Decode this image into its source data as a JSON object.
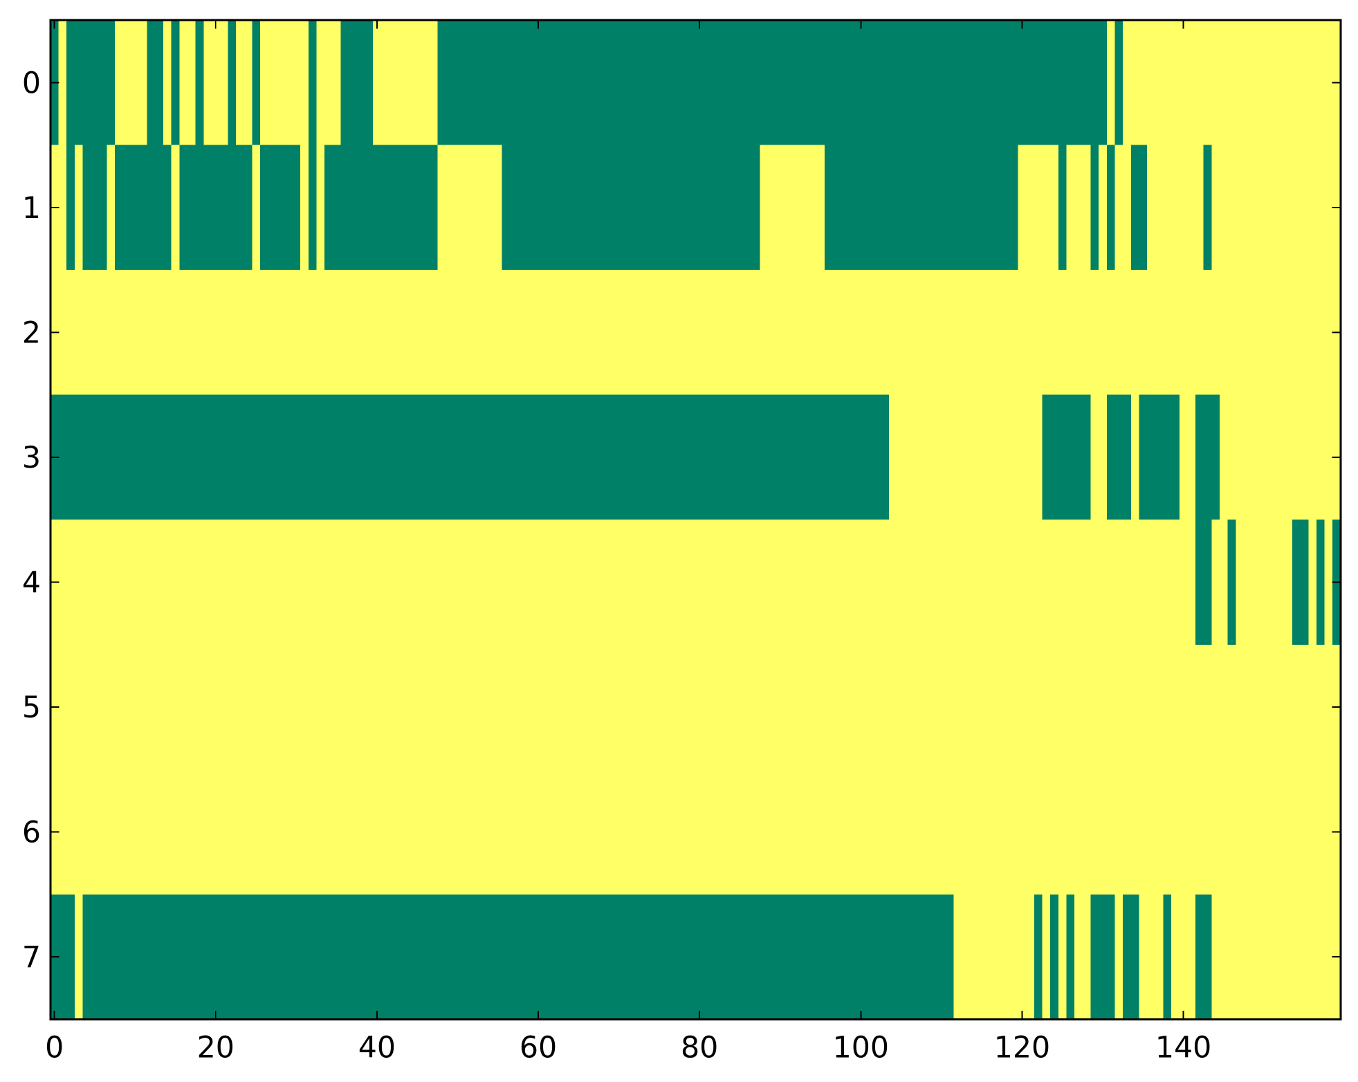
{
  "chart_data": {
    "type": "heatmap",
    "colors": [
      "#008066",
      "#ffff66"
    ],
    "xlim": [
      -0.5,
      159.5
    ],
    "ylim": [
      7.5,
      -0.5
    ],
    "xticks": [
      0,
      20,
      40,
      60,
      80,
      100,
      120,
      140
    ],
    "yticks": [
      0,
      1,
      2,
      3,
      4,
      5,
      6,
      7
    ],
    "values": [
      [
        0,
        1,
        0,
        0,
        0,
        0,
        0,
        0,
        1,
        1,
        1,
        1,
        0,
        0,
        1,
        0,
        1,
        1,
        0,
        1,
        1,
        1,
        0,
        1,
        1,
        0,
        1,
        1,
        1,
        1,
        1,
        1,
        0,
        1,
        1,
        1,
        0,
        0,
        0,
        0,
        1,
        1,
        1,
        1,
        1,
        1,
        1,
        1,
        0,
        0,
        0,
        0,
        0,
        0,
        0,
        0,
        0,
        0,
        0,
        0,
        0,
        0,
        0,
        0,
        0,
        0,
        0,
        0,
        0,
        0,
        0,
        0,
        0,
        0,
        0,
        0,
        0,
        0,
        0,
        0,
        0,
        0,
        0,
        0,
        0,
        0,
        0,
        0,
        0,
        0,
        0,
        0,
        0,
        0,
        0,
        0,
        0,
        0,
        0,
        0,
        0,
        0,
        0,
        0,
        0,
        0,
        0,
        0,
        0,
        0,
        0,
        0,
        0,
        0,
        0,
        0,
        0,
        0,
        0,
        0,
        0,
        0,
        0,
        0,
        0,
        0,
        0,
        0,
        0,
        0,
        0,
        1,
        0,
        1,
        1,
        1,
        1,
        1,
        1,
        1,
        1,
        1,
        1,
        1,
        1,
        1,
        1,
        1,
        1,
        1,
        1,
        1,
        1,
        1,
        1,
        1,
        1,
        1,
        1,
        1
      ],
      [
        1,
        1,
        0,
        1,
        0,
        0,
        0,
        1,
        0,
        0,
        0,
        0,
        0,
        0,
        0,
        1,
        0,
        0,
        0,
        0,
        0,
        0,
        0,
        0,
        0,
        1,
        0,
        0,
        0,
        0,
        0,
        1,
        0,
        1,
        0,
        0,
        0,
        0,
        0,
        0,
        0,
        0,
        0,
        0,
        0,
        0,
        0,
        0,
        1,
        1,
        1,
        1,
        1,
        1,
        1,
        1,
        0,
        0,
        0,
        0,
        0,
        0,
        0,
        0,
        0,
        0,
        0,
        0,
        0,
        0,
        0,
        0,
        0,
        0,
        0,
        0,
        0,
        0,
        0,
        0,
        0,
        0,
        0,
        0,
        0,
        0,
        0,
        0,
        1,
        1,
        1,
        1,
        1,
        1,
        1,
        1,
        0,
        0,
        0,
        0,
        0,
        0,
        0,
        0,
        0,
        0,
        0,
        0,
        0,
        0,
        0,
        0,
        0,
        0,
        0,
        0,
        0,
        0,
        0,
        0,
        1,
        1,
        1,
        1,
        1,
        0,
        1,
        1,
        1,
        0,
        1,
        0,
        1,
        1,
        0,
        0,
        1,
        1,
        1,
        1,
        1,
        1,
        1,
        0,
        1,
        1,
        1,
        1,
        1,
        1,
        1,
        1,
        1,
        1,
        1,
        1,
        1,
        1,
        1,
        1
      ],
      [
        1,
        1,
        1,
        1,
        1,
        1,
        1,
        1,
        1,
        1,
        1,
        1,
        1,
        1,
        1,
        1,
        1,
        1,
        1,
        1,
        1,
        1,
        1,
        1,
        1,
        1,
        1,
        1,
        1,
        1,
        1,
        1,
        1,
        1,
        1,
        1,
        1,
        1,
        1,
        1,
        1,
        1,
        1,
        1,
        1,
        1,
        1,
        1,
        1,
        1,
        1,
        1,
        1,
        1,
        1,
        1,
        1,
        1,
        1,
        1,
        1,
        1,
        1,
        1,
        1,
        1,
        1,
        1,
        1,
        1,
        1,
        1,
        1,
        1,
        1,
        1,
        1,
        1,
        1,
        1,
        1,
        1,
        1,
        1,
        1,
        1,
        1,
        1,
        1,
        1,
        1,
        1,
        1,
        1,
        1,
        1,
        1,
        1,
        1,
        1,
        1,
        1,
        1,
        1,
        1,
        1,
        1,
        1,
        1,
        1,
        1,
        1,
        1,
        1,
        1,
        1,
        1,
        1,
        1,
        1,
        1,
        1,
        1,
        1,
        1,
        1,
        1,
        1,
        1,
        1,
        1,
        1,
        1,
        1,
        1,
        1,
        1,
        1,
        1,
        1,
        1,
        1,
        1,
        1,
        1,
        1,
        1,
        1,
        1,
        1,
        1,
        1,
        1,
        1,
        1,
        1,
        1,
        1,
        1,
        1
      ],
      [
        0,
        0,
        0,
        0,
        0,
        0,
        0,
        0,
        0,
        0,
        0,
        0,
        0,
        0,
        0,
        0,
        0,
        0,
        0,
        0,
        0,
        0,
        0,
        0,
        0,
        0,
        0,
        0,
        0,
        0,
        0,
        0,
        0,
        0,
        0,
        0,
        0,
        0,
        0,
        0,
        0,
        0,
        0,
        0,
        0,
        0,
        0,
        0,
        0,
        0,
        0,
        0,
        0,
        0,
        0,
        0,
        0,
        0,
        0,
        0,
        0,
        0,
        0,
        0,
        0,
        0,
        0,
        0,
        0,
        0,
        0,
        0,
        0,
        0,
        0,
        0,
        0,
        0,
        0,
        0,
        0,
        0,
        0,
        0,
        0,
        0,
        0,
        0,
        0,
        0,
        0,
        0,
        0,
        0,
        0,
        0,
        0,
        0,
        0,
        0,
        0,
        0,
        0,
        0,
        1,
        1,
        1,
        1,
        1,
        1,
        1,
        1,
        1,
        1,
        1,
        1,
        1,
        1,
        1,
        1,
        1,
        1,
        1,
        0,
        0,
        0,
        0,
        0,
        0,
        1,
        1,
        0,
        0,
        0,
        1,
        0,
        0,
        0,
        0,
        0,
        1,
        1,
        0,
        0,
        0,
        1,
        1,
        1,
        1,
        1,
        1,
        1,
        1,
        1,
        1,
        1,
        1,
        1,
        1,
        1
      ],
      [
        1,
        1,
        1,
        1,
        1,
        1,
        1,
        1,
        1,
        1,
        1,
        1,
        1,
        1,
        1,
        1,
        1,
        1,
        1,
        1,
        1,
        1,
        1,
        1,
        1,
        1,
        1,
        1,
        1,
        1,
        1,
        1,
        1,
        1,
        1,
        1,
        1,
        1,
        1,
        1,
        1,
        1,
        1,
        1,
        1,
        1,
        1,
        1,
        1,
        1,
        1,
        1,
        1,
        1,
        1,
        1,
        1,
        1,
        1,
        1,
        1,
        1,
        1,
        1,
        1,
        1,
        1,
        1,
        1,
        1,
        1,
        1,
        1,
        1,
        1,
        1,
        1,
        1,
        1,
        1,
        1,
        1,
        1,
        1,
        1,
        1,
        1,
        1,
        1,
        1,
        1,
        1,
        1,
        1,
        1,
        1,
        1,
        1,
        1,
        1,
        1,
        1,
        1,
        1,
        1,
        1,
        1,
        1,
        1,
        1,
        1,
        1,
        1,
        1,
        1,
        1,
        1,
        1,
        1,
        1,
        1,
        1,
        1,
        1,
        1,
        1,
        1,
        1,
        1,
        1,
        1,
        1,
        1,
        1,
        1,
        1,
        1,
        1,
        1,
        1,
        1,
        1,
        0,
        0,
        1,
        1,
        0,
        1,
        1,
        1,
        1,
        1,
        1,
        1,
        0,
        0,
        1,
        0,
        1,
        0
      ],
      [
        1,
        1,
        1,
        1,
        1,
        1,
        1,
        1,
        1,
        1,
        1,
        1,
        1,
        1,
        1,
        1,
        1,
        1,
        1,
        1,
        1,
        1,
        1,
        1,
        1,
        1,
        1,
        1,
        1,
        1,
        1,
        1,
        1,
        1,
        1,
        1,
        1,
        1,
        1,
        1,
        1,
        1,
        1,
        1,
        1,
        1,
        1,
        1,
        1,
        1,
        1,
        1,
        1,
        1,
        1,
        1,
        1,
        1,
        1,
        1,
        1,
        1,
        1,
        1,
        1,
        1,
        1,
        1,
        1,
        1,
        1,
        1,
        1,
        1,
        1,
        1,
        1,
        1,
        1,
        1,
        1,
        1,
        1,
        1,
        1,
        1,
        1,
        1,
        1,
        1,
        1,
        1,
        1,
        1,
        1,
        1,
        1,
        1,
        1,
        1,
        1,
        1,
        1,
        1,
        1,
        1,
        1,
        1,
        1,
        1,
        1,
        1,
        1,
        1,
        1,
        1,
        1,
        1,
        1,
        1,
        1,
        1,
        1,
        1,
        1,
        1,
        1,
        1,
        1,
        1,
        1,
        1,
        1,
        1,
        1,
        1,
        1,
        1,
        1,
        1,
        1,
        1,
        1,
        1,
        1,
        1,
        1,
        1,
        1,
        1,
        1,
        1,
        1,
        1,
        1,
        1,
        1,
        1,
        1,
        1
      ],
      [
        1,
        1,
        1,
        1,
        1,
        1,
        1,
        1,
        1,
        1,
        1,
        1,
        1,
        1,
        1,
        1,
        1,
        1,
        1,
        1,
        1,
        1,
        1,
        1,
        1,
        1,
        1,
        1,
        1,
        1,
        1,
        1,
        1,
        1,
        1,
        1,
        1,
        1,
        1,
        1,
        1,
        1,
        1,
        1,
        1,
        1,
        1,
        1,
        1,
        1,
        1,
        1,
        1,
        1,
        1,
        1,
        1,
        1,
        1,
        1,
        1,
        1,
        1,
        1,
        1,
        1,
        1,
        1,
        1,
        1,
        1,
        1,
        1,
        1,
        1,
        1,
        1,
        1,
        1,
        1,
        1,
        1,
        1,
        1,
        1,
        1,
        1,
        1,
        1,
        1,
        1,
        1,
        1,
        1,
        1,
        1,
        1,
        1,
        1,
        1,
        1,
        1,
        1,
        1,
        1,
        1,
        1,
        1,
        1,
        1,
        1,
        1,
        1,
        1,
        1,
        1,
        1,
        1,
        1,
        1,
        1,
        1,
        1,
        1,
        1,
        1,
        1,
        1,
        1,
        1,
        1,
        1,
        1,
        1,
        1,
        1,
        1,
        1,
        1,
        1,
        1,
        1,
        1,
        1,
        1,
        1,
        1,
        1,
        1,
        1,
        1,
        1,
        1,
        1,
        1,
        1,
        1,
        1,
        1,
        1
      ],
      [
        0,
        0,
        0,
        1,
        0,
        0,
        0,
        0,
        0,
        0,
        0,
        0,
        0,
        0,
        0,
        0,
        0,
        0,
        0,
        0,
        0,
        0,
        0,
        0,
        0,
        0,
        0,
        0,
        0,
        0,
        0,
        0,
        0,
        0,
        0,
        0,
        0,
        0,
        0,
        0,
        0,
        0,
        0,
        0,
        0,
        0,
        0,
        0,
        0,
        0,
        0,
        0,
        0,
        0,
        0,
        0,
        0,
        0,
        0,
        0,
        0,
        0,
        0,
        0,
        0,
        0,
        0,
        0,
        0,
        0,
        0,
        0,
        0,
        0,
        0,
        0,
        0,
        0,
        0,
        0,
        0,
        0,
        0,
        0,
        0,
        0,
        0,
        0,
        0,
        0,
        0,
        0,
        0,
        0,
        0,
        0,
        0,
        0,
        0,
        0,
        0,
        0,
        0,
        0,
        0,
        0,
        0,
        0,
        0,
        0,
        0,
        0,
        1,
        1,
        1,
        1,
        1,
        1,
        1,
        1,
        1,
        1,
        0,
        1,
        0,
        1,
        0,
        1,
        1,
        0,
        0,
        0,
        1,
        0,
        0,
        1,
        1,
        1,
        0,
        1,
        1,
        1,
        0,
        0,
        1,
        1,
        1,
        1,
        1,
        1,
        1,
        1,
        1,
        1,
        1,
        1,
        1,
        1,
        1,
        1
      ]
    ]
  }
}
